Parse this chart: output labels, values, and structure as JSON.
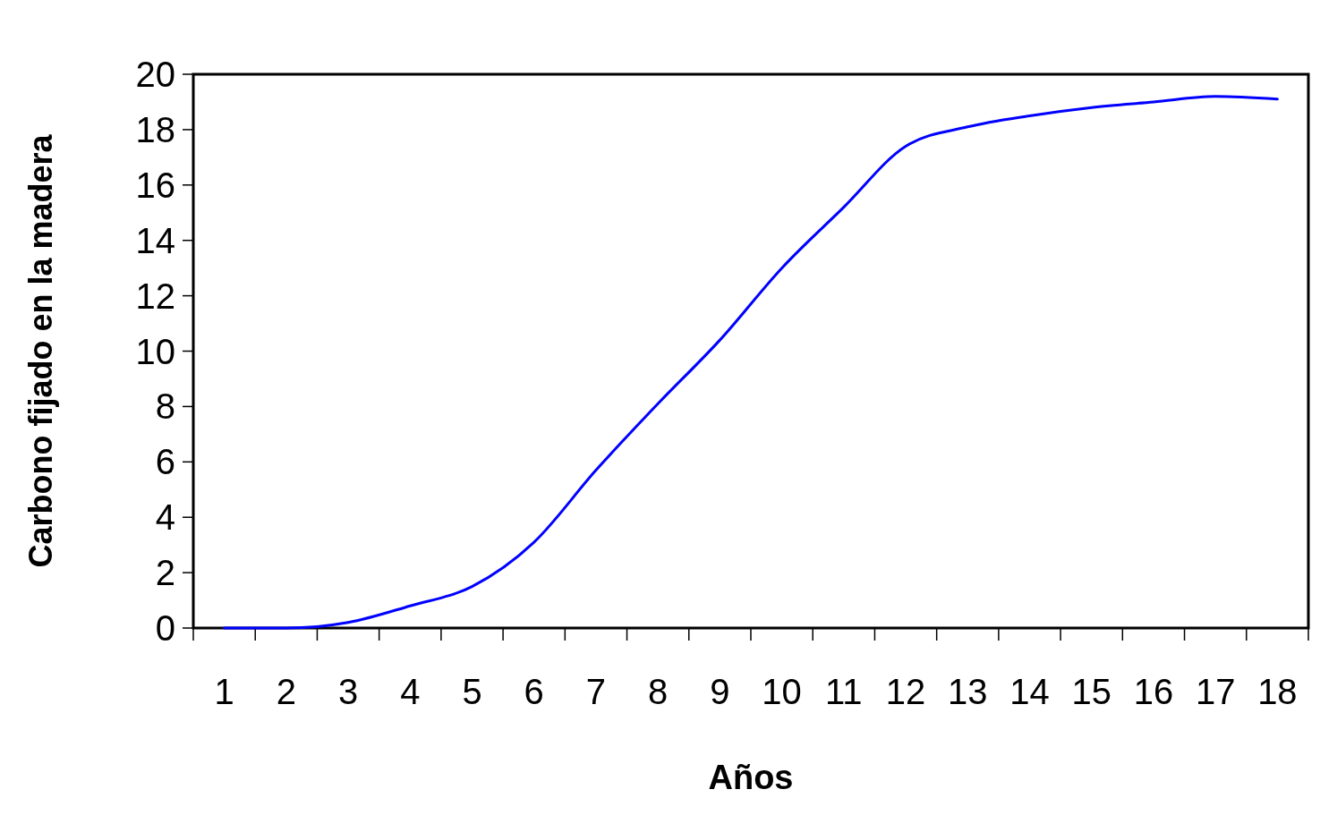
{
  "chart_data": {
    "type": "line",
    "xlabel": "Años",
    "ylabel": "Carbono fijado en la madera",
    "categories": [
      "1",
      "2",
      "3",
      "4",
      "5",
      "6",
      "7",
      "8",
      "9",
      "10",
      "11",
      "12",
      "13",
      "14",
      "15",
      "16",
      "17",
      "18"
    ],
    "series": [
      {
        "color": "#0000ff",
        "values": [
          0,
          0,
          0.2,
          0.8,
          1.5,
          3.1,
          5.7,
          8.1,
          10.4,
          13.0,
          15.2,
          17.4,
          18.1,
          18.5,
          18.8,
          19.0,
          19.2,
          19.1
        ]
      }
    ],
    "ylim": [
      0,
      20
    ],
    "yticks": [
      0,
      2,
      4,
      6,
      8,
      10,
      12,
      14,
      16,
      18,
      20
    ],
    "grid": false,
    "marker": "none",
    "line_style": "solid"
  }
}
